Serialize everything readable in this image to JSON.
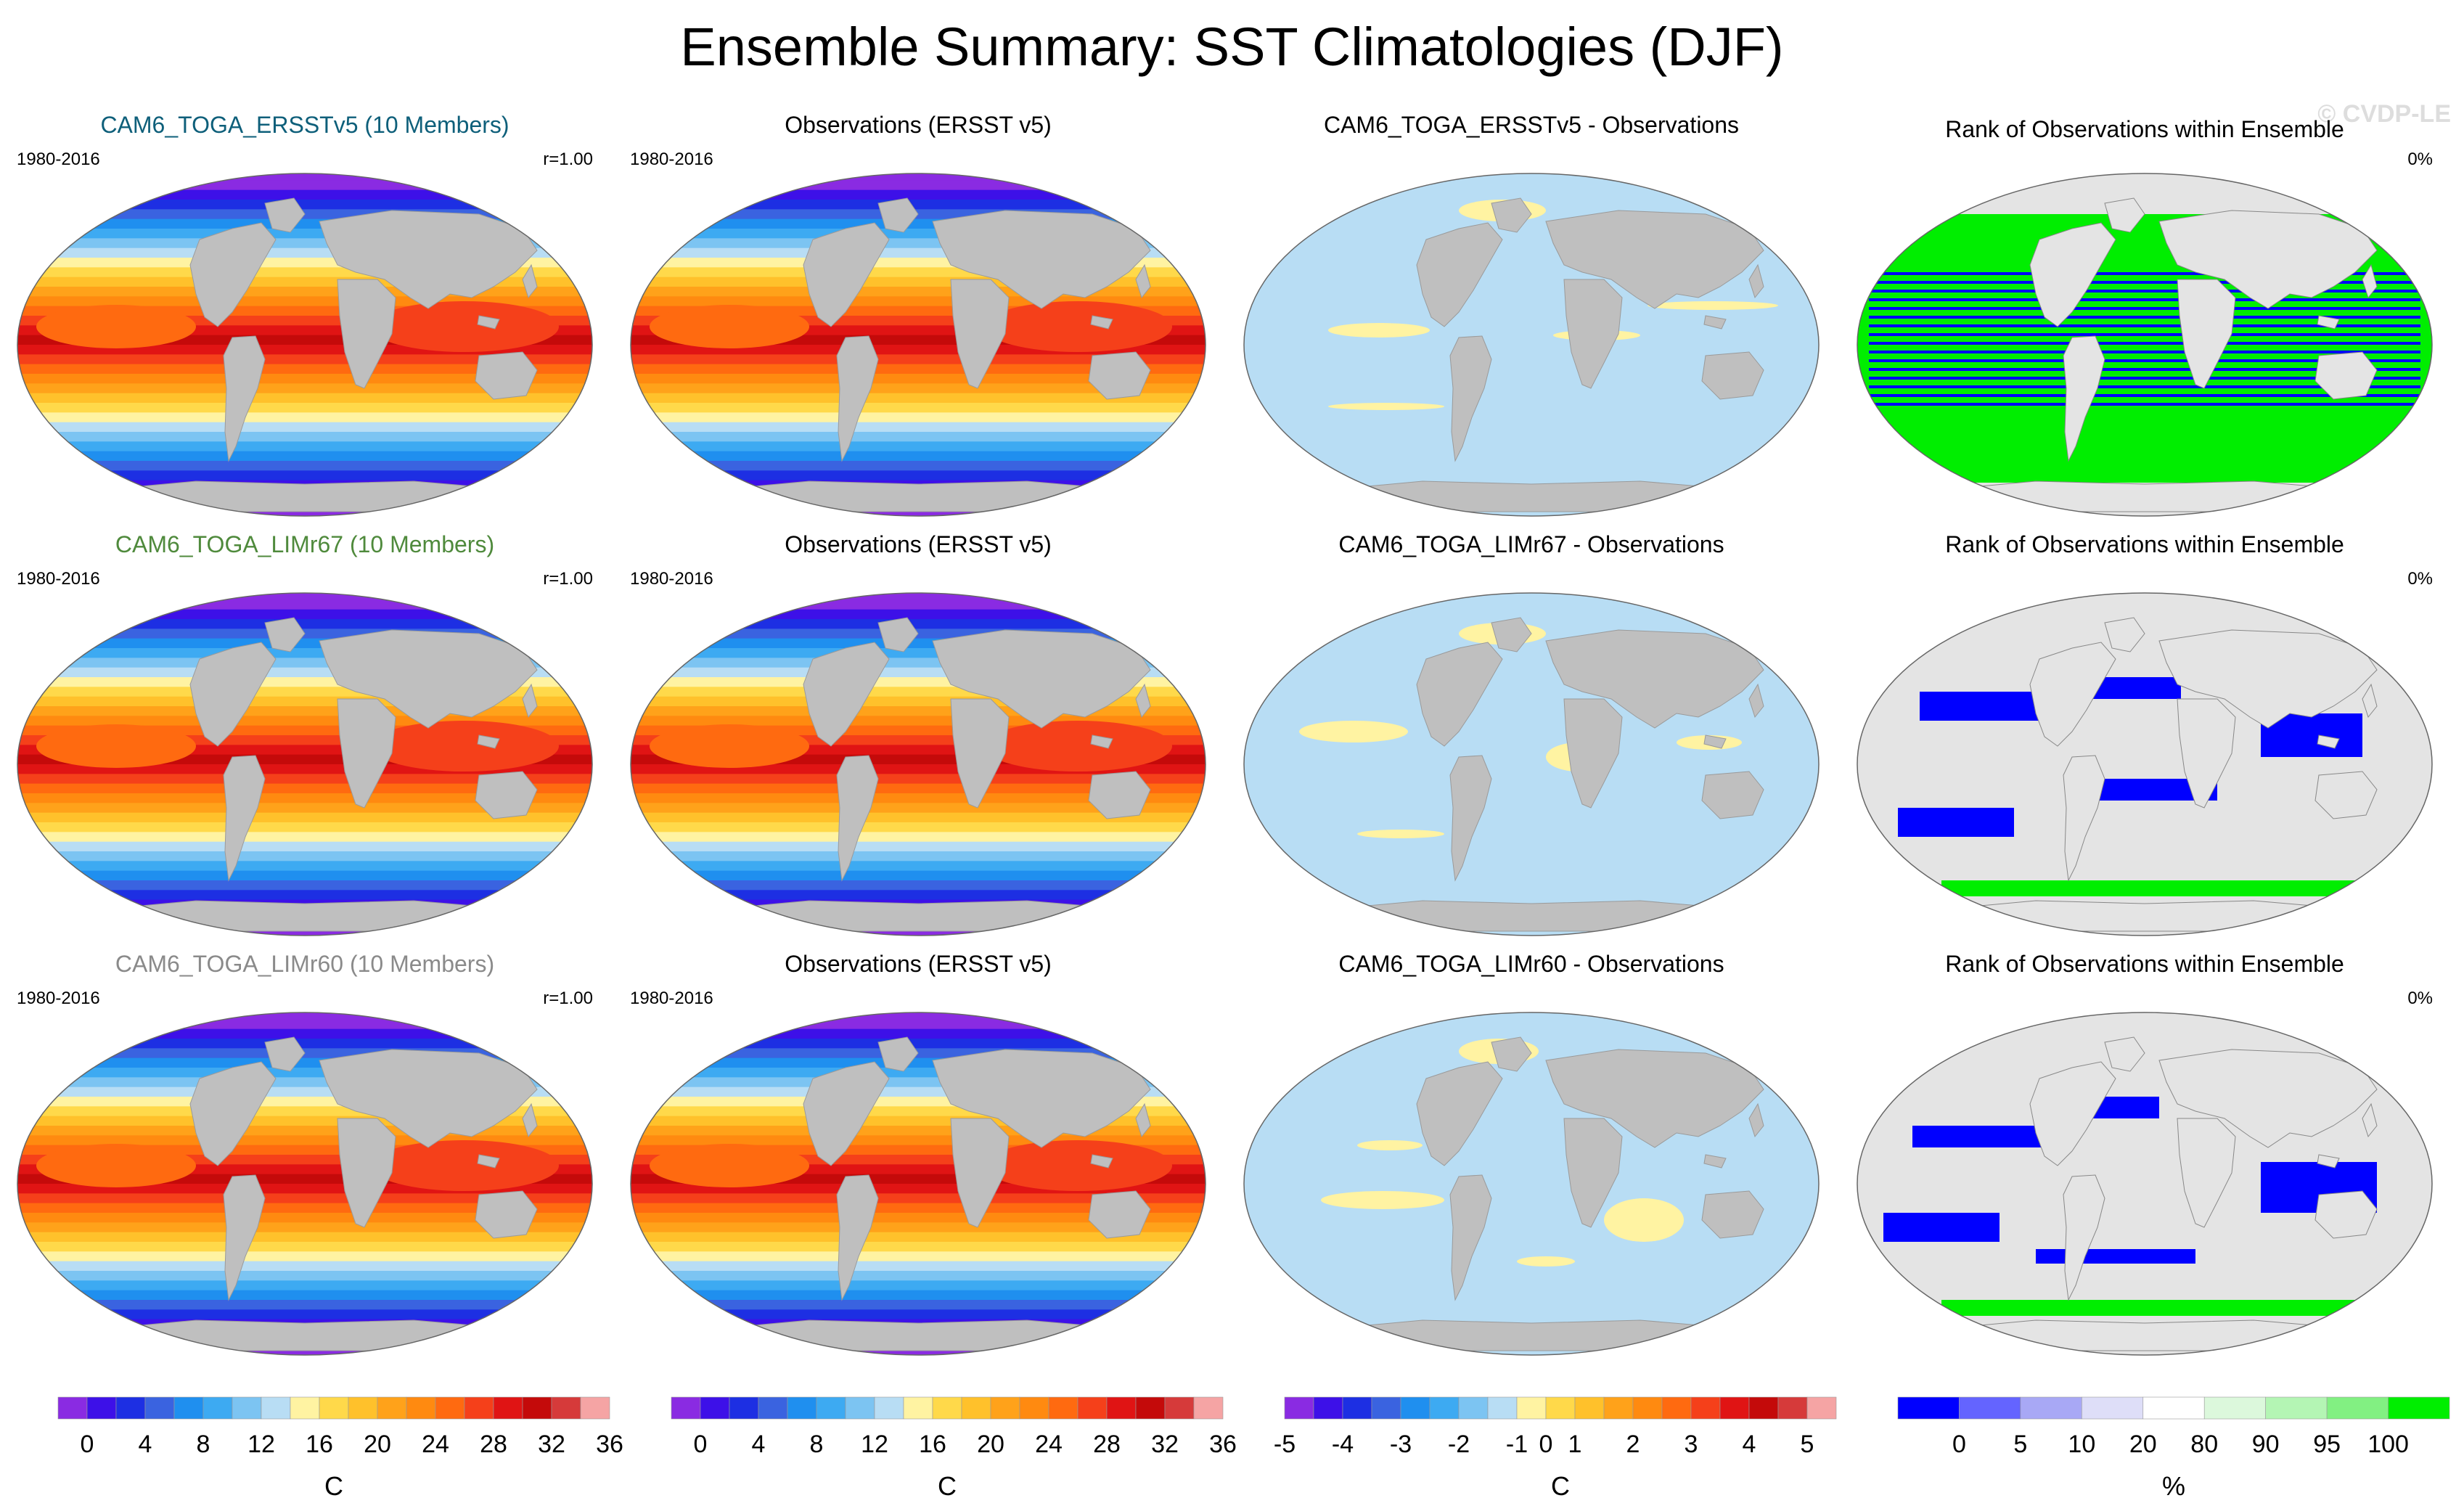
{
  "title": "Ensemble Summary: SST Climatologies (DJF)",
  "watermark": "© CVDP-LE",
  "chart_data": {
    "type": "heatmap",
    "rows": [
      {
        "model": {
          "text": "CAM6_TOGA_ERSSTv5 (10 Members)",
          "color": "#0e5f7a"
        },
        "period": "1980-2016",
        "pattern_corr": "r=1.00",
        "obs_title": "Observations (ERSST v5)",
        "obs_period": "1980-2016",
        "diff_title": "CAM6_TOGA_ERSSTv5 - Observations",
        "rank_title": "Rank of Observations within Ensemble",
        "rank_pct": "0%"
      },
      {
        "model": {
          "text": "CAM6_TOGA_LIMr67 (10 Members)",
          "color": "#4f8a3c"
        },
        "period": "1980-2016",
        "pattern_corr": "r=1.00",
        "obs_title": "Observations (ERSST v5)",
        "obs_period": "1980-2016",
        "diff_title": "CAM6_TOGA_LIMr67 - Observations",
        "rank_title": "Rank of Observations within Ensemble",
        "rank_pct": "0%"
      },
      {
        "model": {
          "text": "CAM6_TOGA_LIMr60 (10 Members)",
          "color": "#8a8a8a"
        },
        "period": "1980-2016",
        "pattern_corr": "r=1.00",
        "obs_title": "Observations (ERSST v5)",
        "obs_period": "1980-2016",
        "diff_title": "CAM6_TOGA_LIMr60 - Observations",
        "rank_title": "Rank of Observations within Ensemble",
        "rank_pct": "0%"
      }
    ],
    "colorbars": [
      {
        "name": "sst",
        "unit": "C",
        "colors": [
          "#8a2be2",
          "#3d10e8",
          "#1d2fe3",
          "#3a63e0",
          "#1f8fef",
          "#3daaf2",
          "#7cc4f2",
          "#b8ddf4",
          "#fff3a2",
          "#ffd94a",
          "#ffc12b",
          "#ffa21a",
          "#ff8a10",
          "#ff6a10",
          "#f5401a",
          "#e01414",
          "#c40a0a",
          "#d63a3a",
          "#f5a4a4"
        ],
        "ticks": [
          "0",
          "4",
          "8",
          "12",
          "16",
          "20",
          "24",
          "28",
          "32",
          "36"
        ],
        "tick_index": [
          1,
          3,
          5,
          7,
          9,
          11,
          13,
          15,
          17,
          19
        ]
      },
      {
        "name": "sst-obs",
        "unit": "C",
        "colors": [
          "#8a2be2",
          "#3d10e8",
          "#1d2fe3",
          "#3a63e0",
          "#1f8fef",
          "#3daaf2",
          "#7cc4f2",
          "#b8ddf4",
          "#fff3a2",
          "#ffd94a",
          "#ffc12b",
          "#ffa21a",
          "#ff8a10",
          "#ff6a10",
          "#f5401a",
          "#e01414",
          "#c40a0a",
          "#d63a3a",
          "#f5a4a4"
        ],
        "ticks": [
          "0",
          "4",
          "8",
          "12",
          "16",
          "20",
          "24",
          "28",
          "32",
          "36"
        ],
        "tick_index": [
          1,
          3,
          5,
          7,
          9,
          11,
          13,
          15,
          17,
          19
        ]
      },
      {
        "name": "diff",
        "unit": "C",
        "colors": [
          "#8a2be2",
          "#3d10e8",
          "#1d2fe3",
          "#3a63e0",
          "#1f8fef",
          "#3daaf2",
          "#7cc4f2",
          "#b8ddf4",
          "#fff3a2",
          "#ffd94a",
          "#ffc12b",
          "#ffa21a",
          "#ff8a10",
          "#ff6a10",
          "#f5401a",
          "#e01414",
          "#c40a0a",
          "#d63a3a",
          "#f5a4a4"
        ],
        "ticks": [
          "-5",
          "-4",
          "-3",
          "-2",
          "-1",
          "0",
          "1",
          "2",
          "3",
          "4",
          "5"
        ],
        "tick_index": [
          0,
          2,
          4,
          6,
          8,
          9,
          10,
          12,
          14,
          16,
          18
        ]
      },
      {
        "name": "rank",
        "unit": "%",
        "colors": [
          "#0000ff",
          "#6464ff",
          "#a8a8f5",
          "#dedef8",
          "#ffffff",
          "#dcf8dc",
          "#b4f5b4",
          "#82f082",
          "#00ee00"
        ],
        "ticks": [
          "0",
          "5",
          "10",
          "20",
          "80",
          "90",
          "95",
          "100"
        ],
        "tick_index": [
          1,
          2,
          3,
          4,
          5,
          6,
          7,
          8
        ]
      }
    ]
  }
}
